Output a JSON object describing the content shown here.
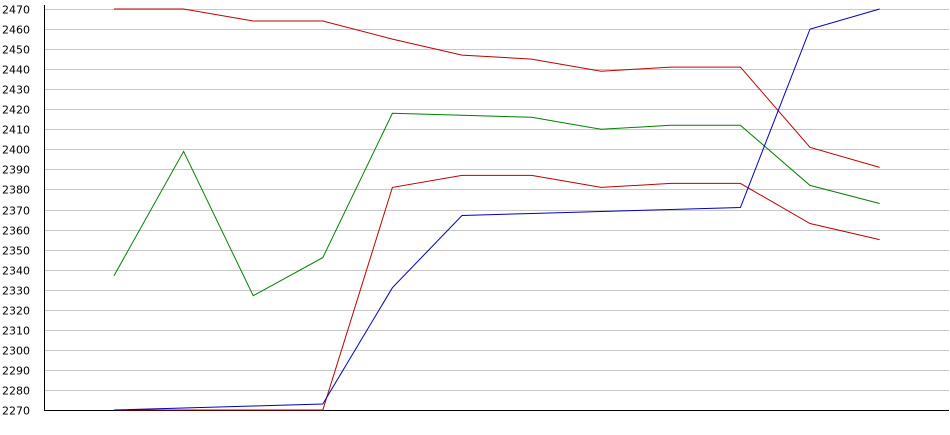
{
  "chart_data": {
    "type": "line",
    "title": "",
    "xlabel": "",
    "ylabel": "",
    "ylim": [
      2270,
      2470
    ],
    "yticks": [
      2270,
      2280,
      2290,
      2300,
      2310,
      2320,
      2330,
      2340,
      2350,
      2360,
      2370,
      2380,
      2390,
      2400,
      2410,
      2420,
      2430,
      2440,
      2450,
      2460,
      2470
    ],
    "grid": true,
    "legend": "none",
    "x": [
      1,
      2,
      3,
      4,
      5,
      6,
      7,
      8,
      9,
      10,
      11,
      12
    ],
    "series": [
      {
        "color": "#c00000",
        "values": [
          2470,
          2470,
          2464,
          2464,
          2455,
          2447,
          2445,
          2439,
          2441,
          2441,
          2401,
          2391
        ]
      },
      {
        "color": "#008000",
        "values": [
          2337,
          2399,
          2327,
          2346,
          2418,
          2417,
          2416,
          2410,
          2412,
          2412,
          2382,
          2373
        ]
      },
      {
        "color": "#c00000",
        "values": [
          2270,
          2270,
          2270,
          2270,
          2381,
          2387,
          2387,
          2381,
          2383,
          2383,
          2363,
          2355
        ]
      },
      {
        "color": "#0000c0",
        "values": [
          2270,
          2271,
          2272,
          2273,
          2331,
          2367,
          2368,
          2369,
          2370,
          2371,
          2460,
          2470
        ]
      }
    ]
  }
}
